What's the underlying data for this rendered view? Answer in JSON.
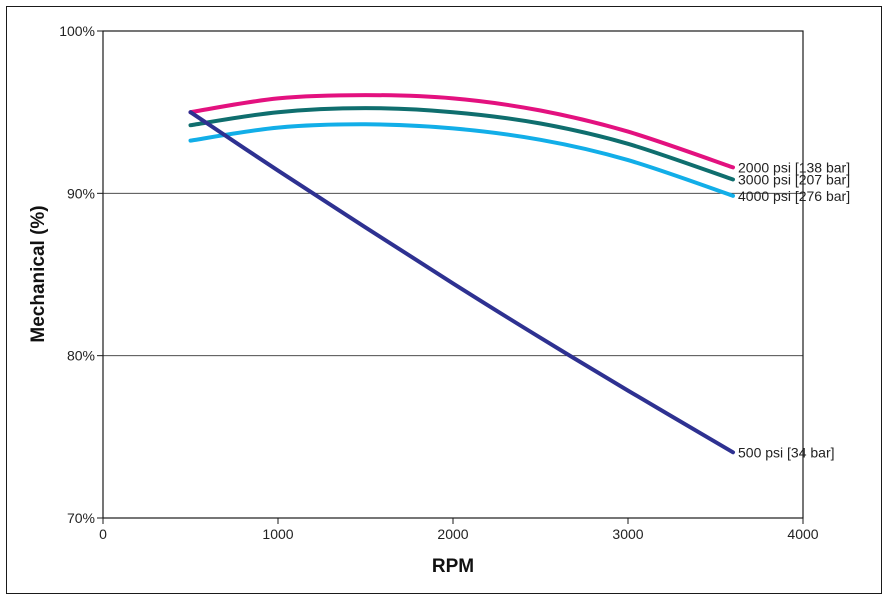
{
  "chart_data": {
    "type": "line",
    "title": "",
    "xlabel": "RPM",
    "ylabel": "Mechanical (%)",
    "xlim": [
      0,
      4000
    ],
    "ylim": [
      70,
      100
    ],
    "x_ticks": [
      0,
      1000,
      2000,
      3000,
      4000
    ],
    "x_tick_labels": [
      "0",
      "1000",
      "2000",
      "3000",
      "4000"
    ],
    "y_ticks": [
      70,
      80,
      90,
      100
    ],
    "y_tick_labels": [
      "70%",
      "80%",
      "90%",
      "100%"
    ],
    "grid": "horizontal",
    "legend": "inline labels at right end of each line",
    "series": [
      {
        "name": "2000 psi [138 bar]",
        "color": "#e3117f",
        "x": [
          500,
          1000,
          1500,
          2000,
          2500,
          3000,
          3600
        ],
        "y": [
          95.0,
          95.85,
          96.05,
          95.85,
          95.1,
          93.8,
          91.6
        ]
      },
      {
        "name": "3000 psi [207 bar]",
        "color": "#0f6e6e",
        "x": [
          500,
          1000,
          1500,
          2000,
          2500,
          3000,
          3600
        ],
        "y": [
          94.2,
          95.0,
          95.25,
          95.0,
          94.3,
          93.05,
          90.85
        ]
      },
      {
        "name": "4000 psi [276 bar]",
        "color": "#12aee8",
        "x": [
          500,
          1000,
          1500,
          2000,
          2500,
          3000,
          3600
        ],
        "y": [
          93.25,
          94.05,
          94.25,
          94.0,
          93.3,
          92.05,
          89.85
        ]
      },
      {
        "name": "500 psi [34 bar]",
        "color": "#2e3191",
        "x": [
          500,
          1000,
          1500,
          2000,
          2500,
          3000,
          3600
        ],
        "y": [
          95.0,
          91.4,
          87.9,
          84.45,
          81.1,
          77.85,
          74.05
        ]
      }
    ]
  }
}
